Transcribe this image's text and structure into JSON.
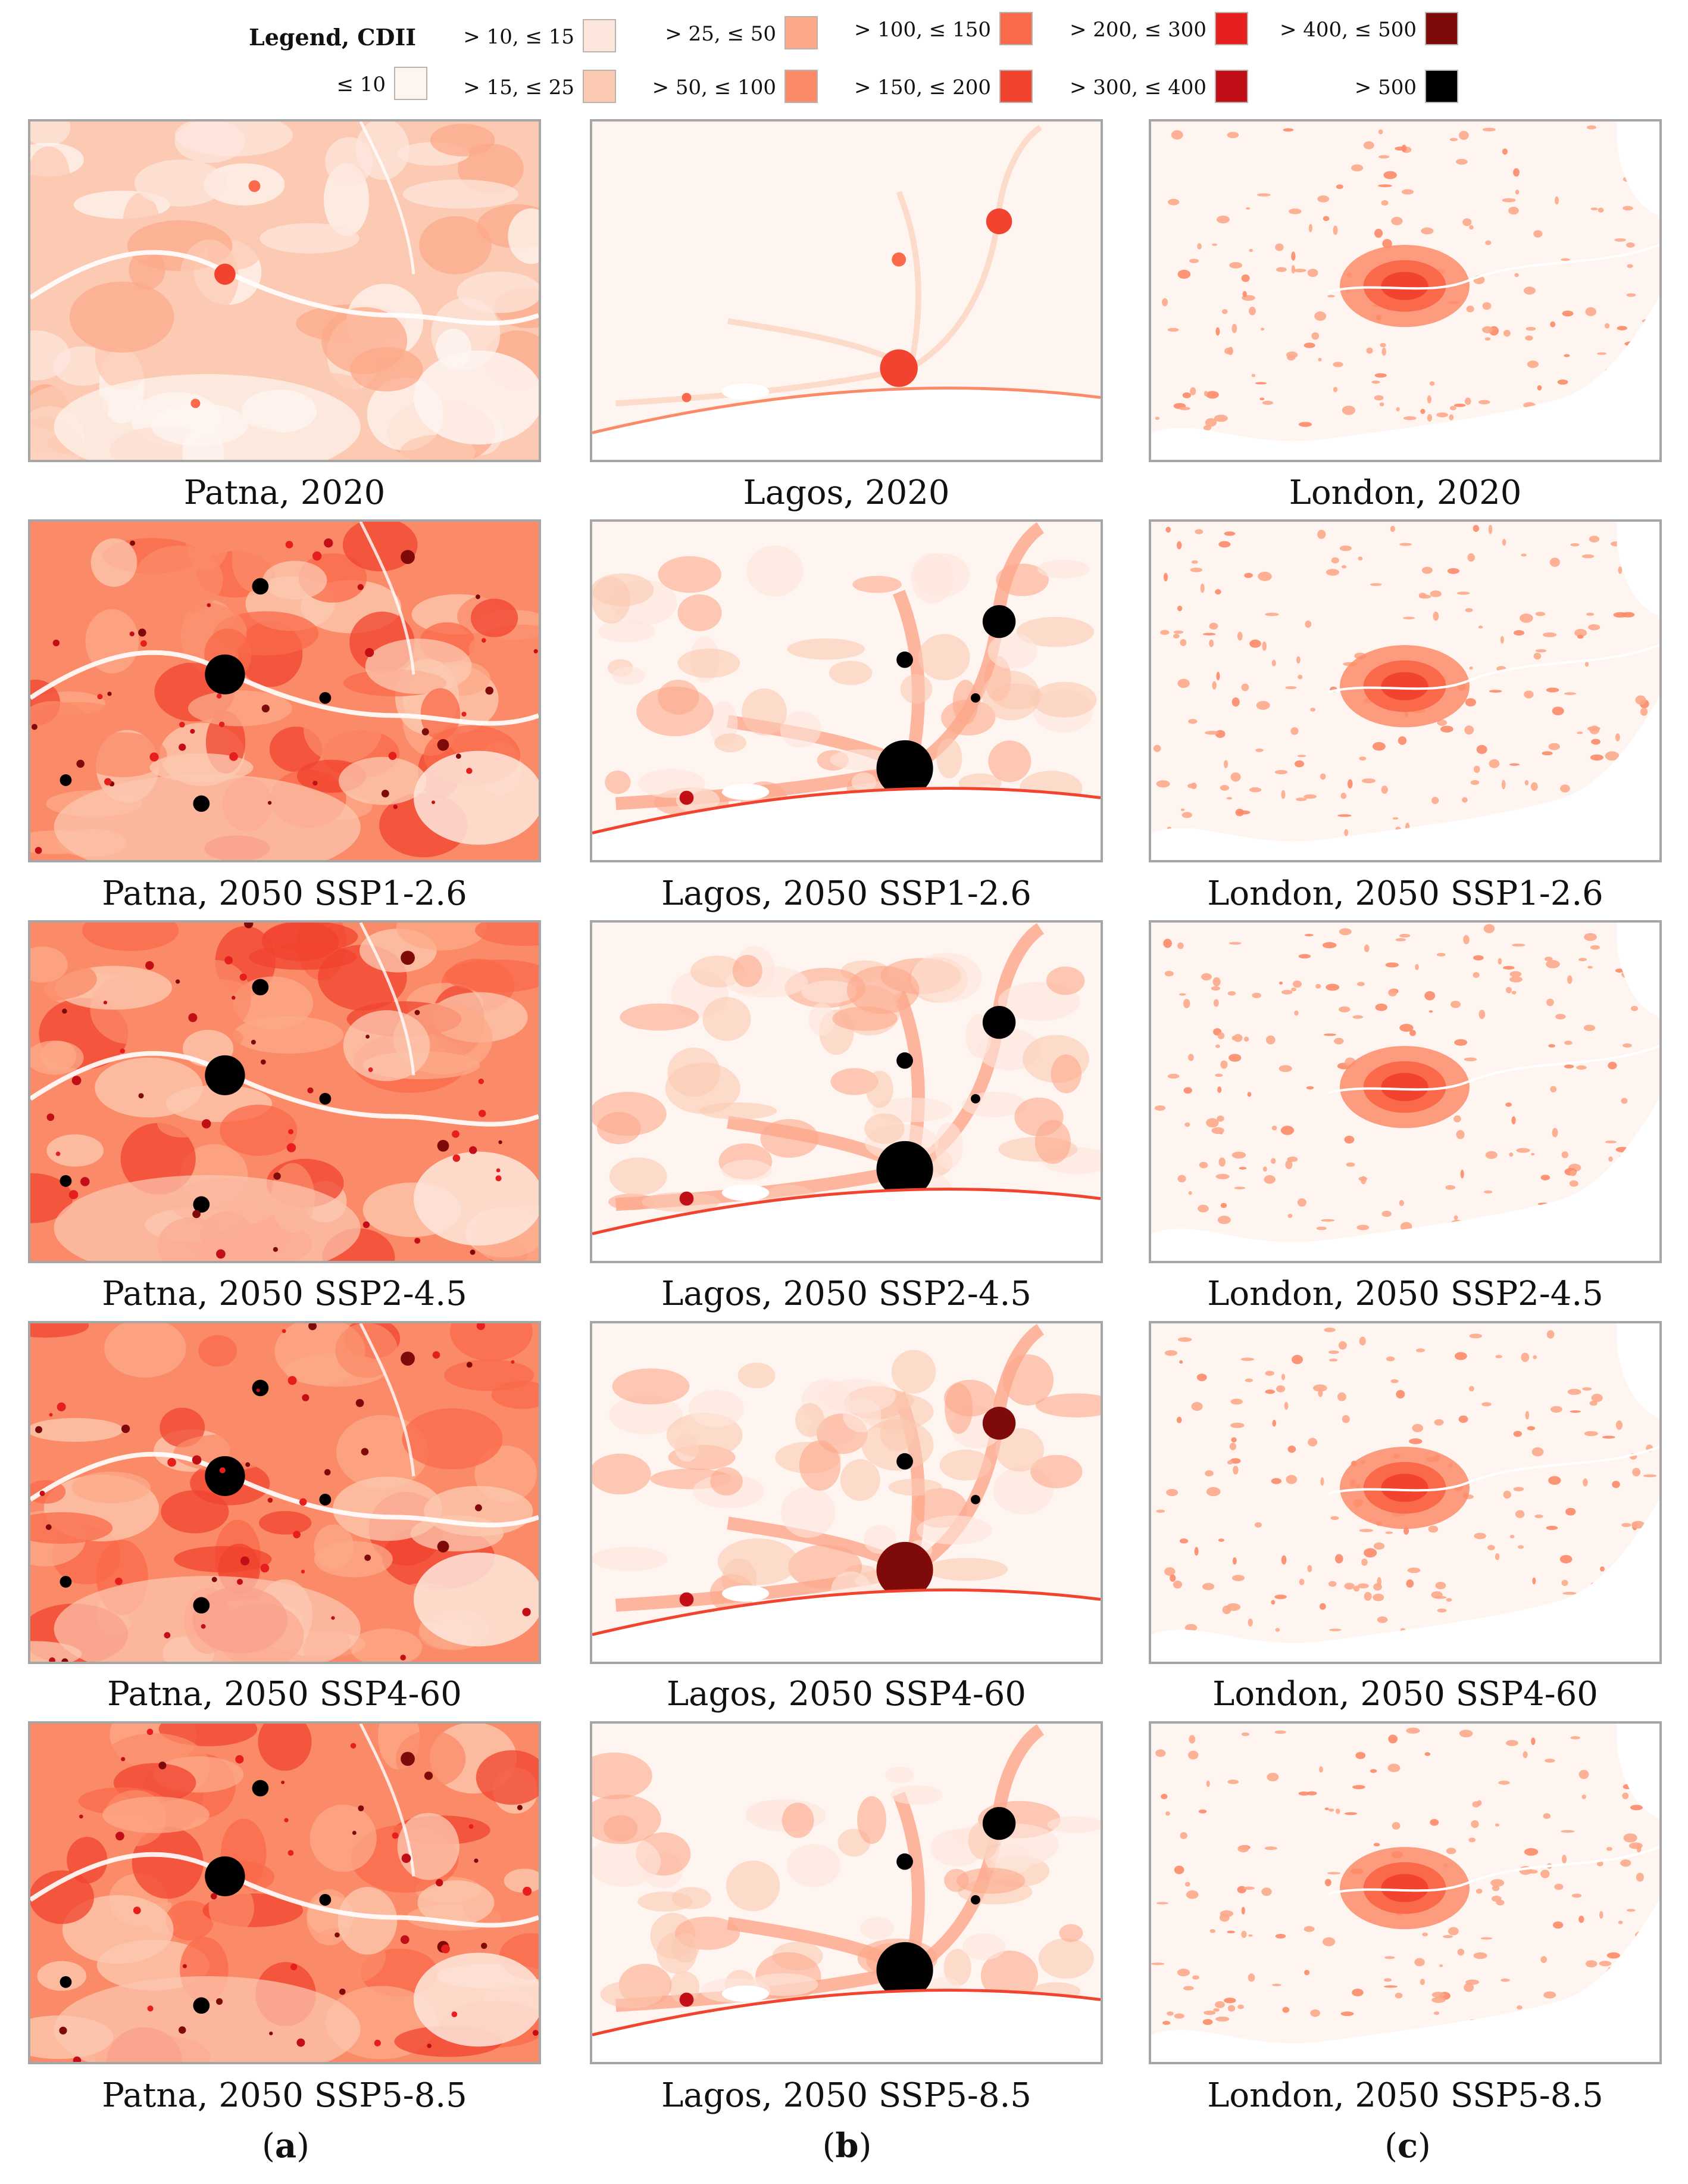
{
  "legend": {
    "title": "Legend, CDII",
    "items": [
      {
        "label": "≤ 10",
        "color": "#fef5f1"
      },
      {
        "label": "> 10, ≤ 15",
        "color": "#fde6dc"
      },
      {
        "label": "> 15, ≤ 25",
        "color": "#fcc9b2"
      },
      {
        "label": "> 25, ≤ 50",
        "color": "#fca98a"
      },
      {
        "label": "> 50, ≤ 100",
        "color": "#fb8b68"
      },
      {
        "label": "> 100, ≤ 150",
        "color": "#f9694a"
      },
      {
        "label": "> 150, ≤ 200",
        "color": "#f2432f"
      },
      {
        "label": "> 200, ≤ 300",
        "color": "#e61e1e"
      },
      {
        "label": "> 300, ≤ 400",
        "color": "#c20f17"
      },
      {
        "label": "> 400, ≤ 500",
        "color": "#7f0a0a"
      },
      {
        "label": "> 500",
        "color": "#000000"
      }
    ]
  },
  "columns": [
    {
      "letter": "a",
      "city": "Patna"
    },
    {
      "letter": "b",
      "city": "Lagos"
    },
    {
      "letter": "c",
      "city": "London"
    }
  ],
  "scenarios": [
    "2020",
    "2050 SSP1-2.6",
    "2050 SSP2-4.5",
    "2050 SSP4-60",
    "2050 SSP5-8.5"
  ],
  "captions": [
    [
      "Patna, 2020",
      "Lagos, 2020",
      "London, 2020"
    ],
    [
      "Patna, 2050 SSP1-2.6",
      "Lagos, 2050 SSP1-2.6",
      "London, 2050 SSP1-2.6"
    ],
    [
      "Patna, 2050 SSP2-4.5",
      "Lagos, 2050 SSP2-4.5",
      "London, 2050 SSP2-4.5"
    ],
    [
      "Patna, 2050 SSP4-60",
      "Lagos, 2050 SSP4-60",
      "London, 2050 SSP4-60"
    ],
    [
      "Patna, 2050 SSP5-8.5",
      "Lagos, 2050 SSP5-8.5",
      "London, 2050 SSP5-8.5"
    ]
  ],
  "column_labels": [
    "a",
    "b",
    "c"
  ]
}
